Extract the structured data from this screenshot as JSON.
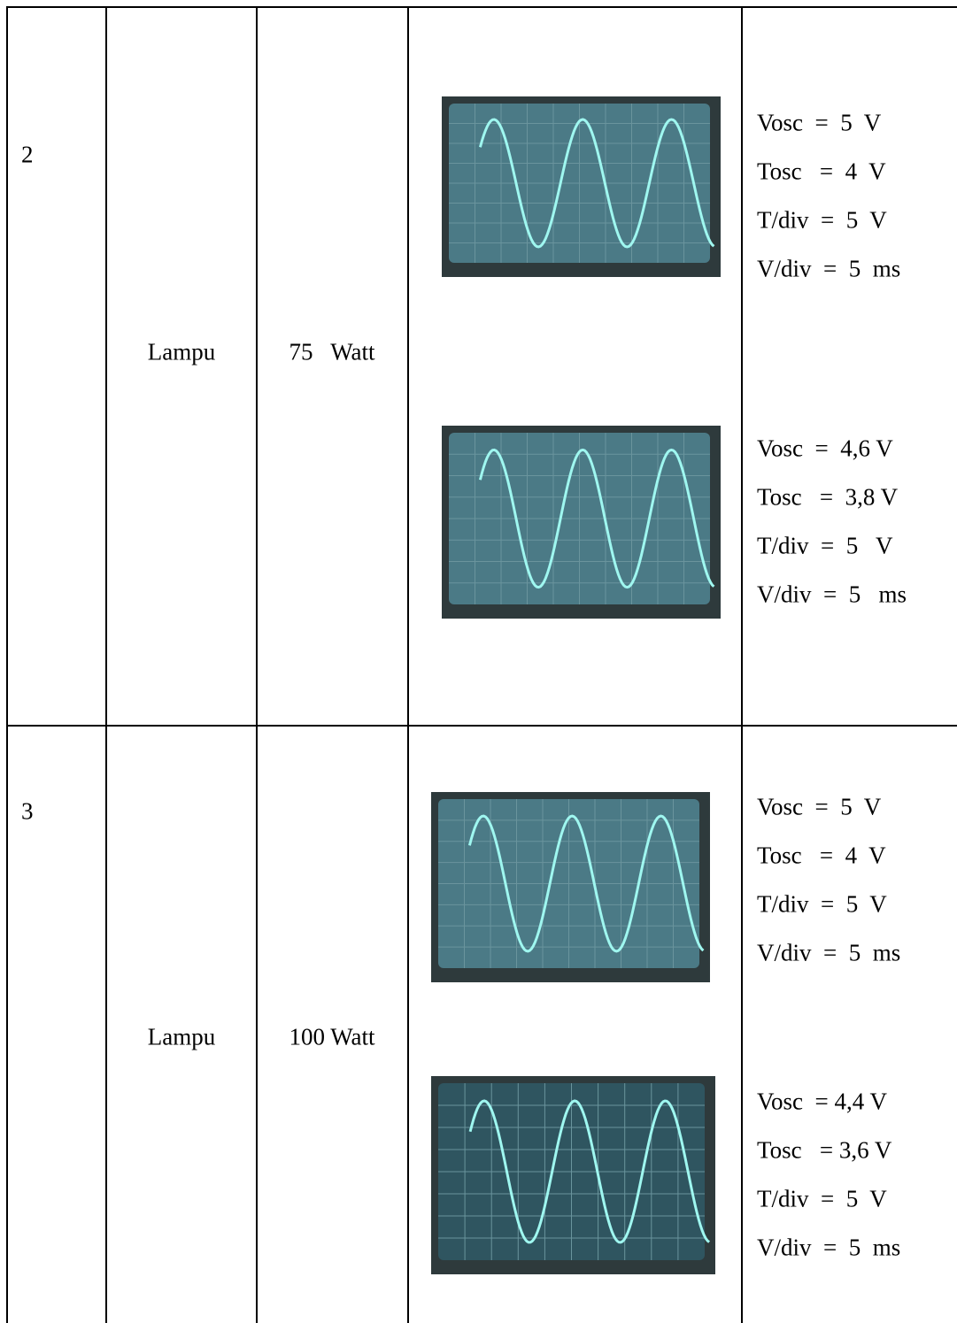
{
  "rows": [
    {
      "number": "2",
      "item": "Lampu",
      "power": "75   Watt",
      "measurements": [
        {
          "lines": [
            "Vosc  =  5  V",
            "Tosc   =  4  V",
            "T/div  =  5  V",
            "V/div  =  5  ms"
          ]
        },
        {
          "lines": [
            "Vosc  =  4,6 V",
            "Tosc   =  3,8 V",
            "T/div  =  5   V",
            "V/div  =  5   ms"
          ]
        }
      ]
    },
    {
      "number": "3",
      "item": "Lampu",
      "power": "100 Watt",
      "measurements": [
        {
          "lines": [
            "Vosc  =  5  V",
            "Tosc   =  4  V",
            "T/div  =  5  V",
            "V/div  =  5  ms"
          ]
        },
        {
          "lines": [
            "Vosc  = 4,4 V",
            "Tosc   = 3,6 V",
            "T/div  =  5  V",
            "V/div  =  5  ms"
          ]
        }
      ]
    }
  ]
}
